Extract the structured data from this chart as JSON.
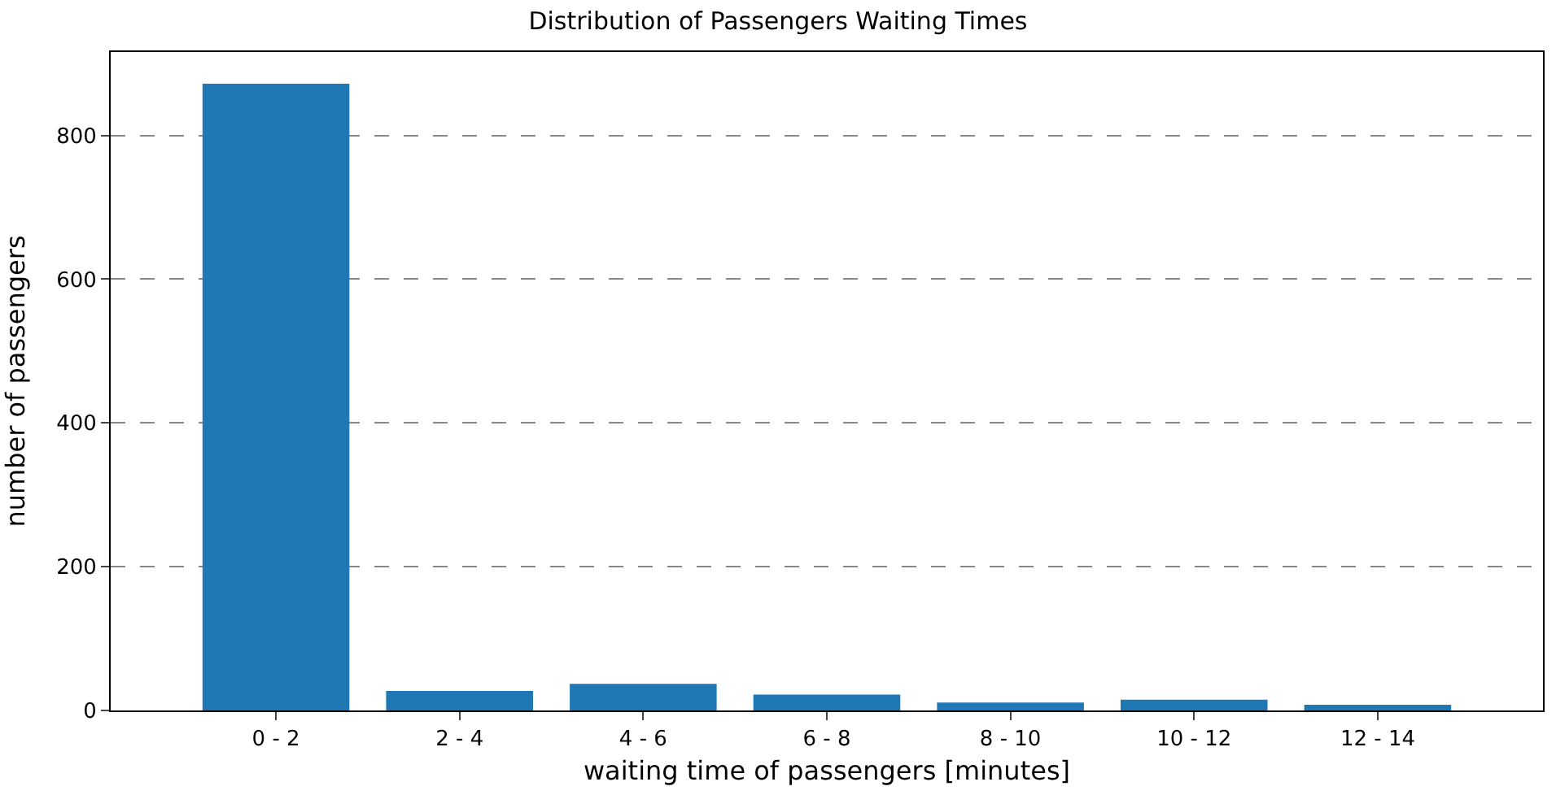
{
  "chart_data": {
    "type": "bar",
    "title": "Distribution of Passengers Waiting Times",
    "xlabel": "waiting time of passengers [minutes]",
    "ylabel": "number of passengers",
    "categories": [
      "0 - 2",
      "2 - 4",
      "4 - 6",
      "6 - 8",
      "8 - 10",
      "10 - 12",
      "12 - 14"
    ],
    "values": [
      872,
      27,
      37,
      22,
      11,
      15,
      8
    ],
    "color": "#1f77b4",
    "ylim": [
      0,
      916
    ],
    "yticks": [
      0,
      200,
      400,
      600,
      800
    ],
    "grid": "y"
  }
}
